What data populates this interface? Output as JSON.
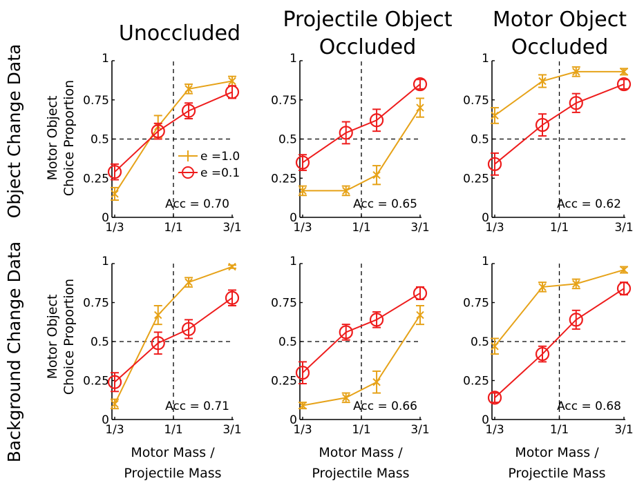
{
  "row_labels": [
    "Object Change Data",
    "Background Change Data"
  ],
  "column_titles": [
    [
      "Unoccluded"
    ],
    [
      "Projectile Object",
      "Occluded"
    ],
    [
      "Motor Object",
      "Occluded"
    ]
  ],
  "ylabel": [
    "Motor Object",
    "Choice Proportion"
  ],
  "xlabel": [
    "Motor Mass /",
    "Projectile Mass"
  ],
  "legend": {
    "labels": [
      "e =1.0",
      "e =0.1"
    ],
    "panel": 0
  },
  "colors": {
    "e1": "#e6a218",
    "e01": "#ee1c1c"
  },
  "chart_data": {
    "type": "line",
    "xscale": "log",
    "ylim": [
      0,
      1
    ],
    "xticks": [
      0.3333,
      1,
      3
    ],
    "xticklabels": [
      "1/3",
      "1/1",
      "3/1"
    ],
    "yticks": [
      0,
      0.25,
      0.5,
      0.75,
      1
    ],
    "yticklabels": [
      "0",
      "0.25",
      "0.5",
      "0.75",
      "1"
    ],
    "reference_lines": {
      "x": 1,
      "y": 0.5
    },
    "x_e1": [
      0.3333,
      0.75,
      1.33,
      3
    ],
    "x_e01": [
      0.3333,
      0.75,
      1.33,
      3
    ],
    "panels": [
      {
        "name": "object-unoccluded",
        "acc": "Acc = 0.70",
        "series": [
          {
            "key": "e1",
            "marker": "x",
            "y": [
              0.15,
              0.58,
              0.82,
              0.87
            ],
            "err": [
              0.04,
              0.07,
              0.03,
              0.03
            ]
          },
          {
            "key": "e01",
            "marker": "o",
            "y": [
              0.29,
              0.55,
              0.68,
              0.8
            ],
            "err": [
              0.05,
              0.05,
              0.05,
              0.04
            ]
          }
        ]
      },
      {
        "name": "object-projectile-occluded",
        "acc": "Acc = 0.65",
        "series": [
          {
            "key": "e1",
            "marker": "x",
            "y": [
              0.17,
              0.17,
              0.27,
              0.7
            ],
            "err": [
              0.03,
              0.03,
              0.06,
              0.06
            ]
          },
          {
            "key": "e01",
            "marker": "o",
            "y": [
              0.35,
              0.54,
              0.62,
              0.85
            ],
            "err": [
              0.05,
              0.07,
              0.07,
              0.03
            ]
          }
        ]
      },
      {
        "name": "object-motor-occluded",
        "acc": "Acc = 0.62",
        "series": [
          {
            "key": "e1",
            "marker": "x",
            "y": [
              0.65,
              0.87,
              0.93,
              0.93
            ],
            "err": [
              0.05,
              0.04,
              0.03,
              0.02
            ]
          },
          {
            "key": "e01",
            "marker": "o",
            "y": [
              0.34,
              0.59,
              0.73,
              0.85
            ],
            "err": [
              0.07,
              0.07,
              0.06,
              0.03
            ]
          }
        ]
      },
      {
        "name": "background-unoccluded",
        "acc": "Acc = 0.71",
        "series": [
          {
            "key": "e1",
            "marker": "x",
            "y": [
              0.1,
              0.67,
              0.88,
              0.98
            ],
            "err": [
              0.03,
              0.06,
              0.03,
              0.01
            ]
          },
          {
            "key": "e01",
            "marker": "o",
            "y": [
              0.24,
              0.49,
              0.58,
              0.78
            ],
            "err": [
              0.06,
              0.07,
              0.06,
              0.05
            ]
          }
        ]
      },
      {
        "name": "background-projectile-occluded",
        "acc": "Acc = 0.66",
        "series": [
          {
            "key": "e1",
            "marker": "x",
            "y": [
              0.09,
              0.14,
              0.24,
              0.67
            ],
            "err": [
              0.02,
              0.03,
              0.07,
              0.06
            ]
          },
          {
            "key": "e01",
            "marker": "o",
            "y": [
              0.3,
              0.56,
              0.64,
              0.81
            ],
            "err": [
              0.07,
              0.05,
              0.05,
              0.04
            ]
          }
        ]
      },
      {
        "name": "background-motor-occluded",
        "acc": "Acc = 0.68",
        "series": [
          {
            "key": "e1",
            "marker": "x",
            "y": [
              0.47,
              0.85,
              0.87,
              0.96
            ],
            "err": [
              0.05,
              0.03,
              0.03,
              0.02
            ]
          },
          {
            "key": "e01",
            "marker": "o",
            "y": [
              0.14,
              0.42,
              0.64,
              0.84
            ],
            "err": [
              0.03,
              0.05,
              0.06,
              0.04
            ]
          }
        ]
      }
    ]
  }
}
